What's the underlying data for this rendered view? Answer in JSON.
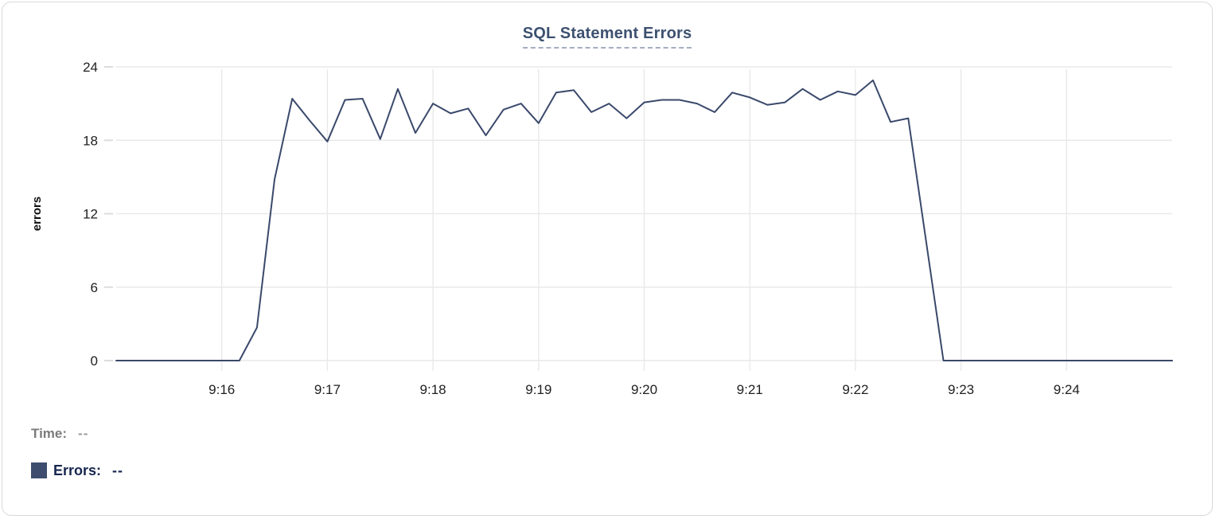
{
  "card": {
    "background": "#ffffff",
    "border_color": "#d9d9d9"
  },
  "chart_data": {
    "type": "line",
    "title": "SQL Statement Errors",
    "xlabel": "",
    "ylabel": "errors",
    "ylim": [
      0,
      24
    ],
    "y_ticks": [
      0,
      6,
      12,
      18,
      24
    ],
    "x_ticks": [
      "9:16",
      "9:17",
      "9:18",
      "9:19",
      "9:20",
      "9:21",
      "9:22",
      "9:23",
      "9:24"
    ],
    "x_range": [
      "9:15:00",
      "9:25:00"
    ],
    "grid": true,
    "legend_position": "bottom-left",
    "colors": {
      "line": "#3a496b",
      "grid": "#e9e9e9",
      "tick": "#dcdcdc",
      "tick_label": "#212121",
      "axis_label": "#111111",
      "title": "#3d5170",
      "title_underline": "#a4adc0"
    },
    "series": [
      {
        "name": "Errors",
        "color": "#3e4d6e",
        "x": [
          "9:15:00",
          "9:15:10",
          "9:15:20",
          "9:15:30",
          "9:15:40",
          "9:15:50",
          "9:16:00",
          "9:16:10",
          "9:16:20",
          "9:16:30",
          "9:16:40",
          "9:16:50",
          "9:17:00",
          "9:17:10",
          "9:17:20",
          "9:17:30",
          "9:17:40",
          "9:17:50",
          "9:18:00",
          "9:18:10",
          "9:18:20",
          "9:18:30",
          "9:18:40",
          "9:18:50",
          "9:19:00",
          "9:19:10",
          "9:19:20",
          "9:19:30",
          "9:19:40",
          "9:19:50",
          "9:20:00",
          "9:20:10",
          "9:20:20",
          "9:20:30",
          "9:20:40",
          "9:20:50",
          "9:21:00",
          "9:21:10",
          "9:21:20",
          "9:21:30",
          "9:21:40",
          "9:21:50",
          "9:22:00",
          "9:22:10",
          "9:22:20",
          "9:22:30",
          "9:22:40",
          "9:22:50",
          "9:23:00",
          "9:23:10",
          "9:23:20",
          "9:23:30",
          "9:23:40",
          "9:23:50",
          "9:24:00",
          "9:24:10",
          "9:24:20",
          "9:24:30",
          "9:24:40",
          "9:24:50",
          "9:25:00"
        ],
        "values": [
          0,
          0,
          0,
          0,
          0,
          0,
          0,
          0,
          2.7,
          14.8,
          21.4,
          19.6,
          17.9,
          21.3,
          21.4,
          18.1,
          22.2,
          18.6,
          21.0,
          20.2,
          20.6,
          18.4,
          20.5,
          21.0,
          19.4,
          21.9,
          22.1,
          20.3,
          21.0,
          19.8,
          21.1,
          21.3,
          21.3,
          21.0,
          20.3,
          21.9,
          21.5,
          20.9,
          21.1,
          22.2,
          21.3,
          22.0,
          21.7,
          22.9,
          19.5,
          19.8,
          9.9,
          0,
          0,
          0,
          0,
          0,
          0,
          0,
          0,
          0,
          0,
          0,
          0,
          0,
          0
        ]
      }
    ]
  },
  "legend": {
    "time_label": "Time:",
    "time_value": "--",
    "errors_label": "Errors:",
    "errors_value": "--",
    "swatch_color": "#3e4d6e"
  }
}
